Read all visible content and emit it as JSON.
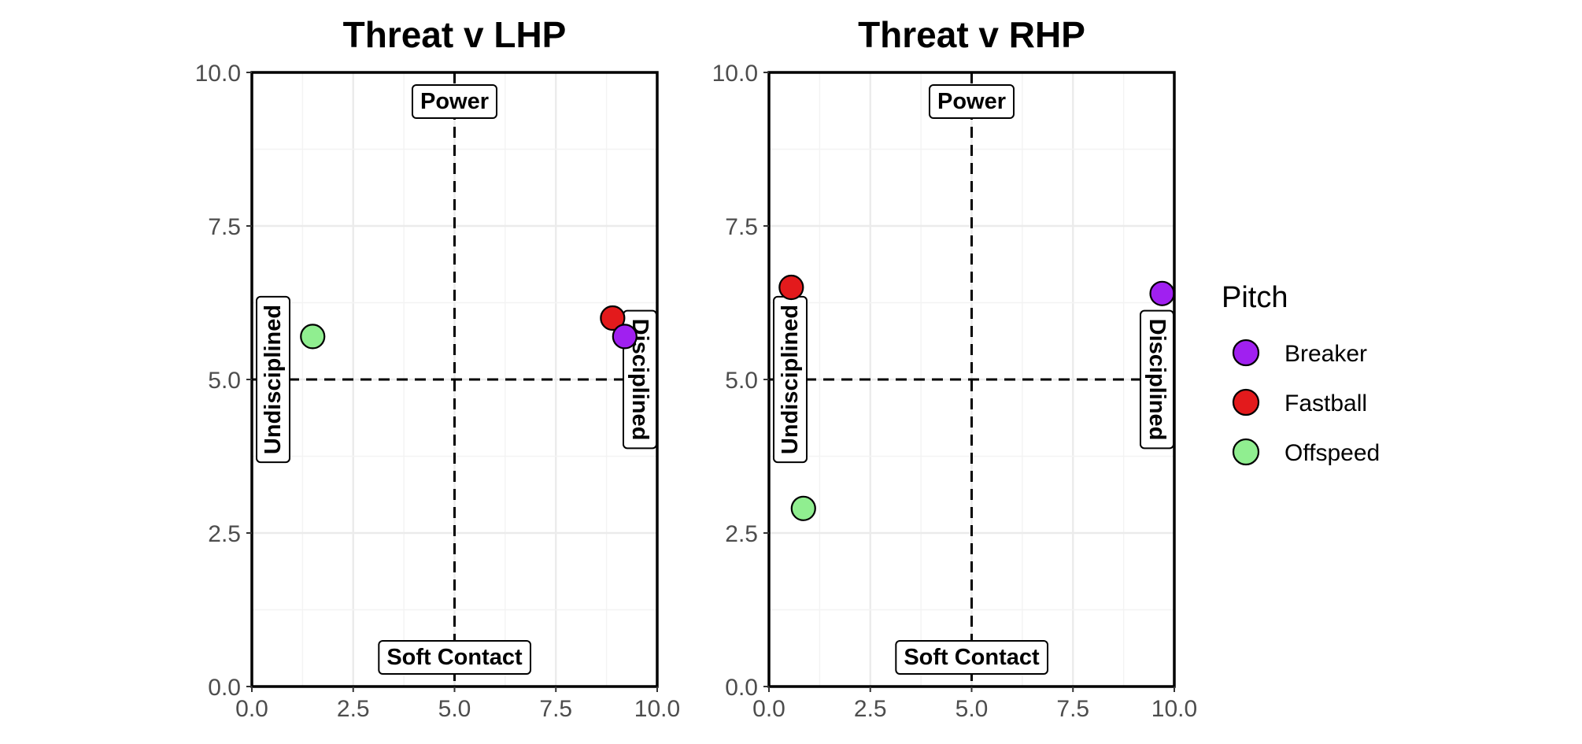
{
  "chart_data": [
    {
      "type": "scatter",
      "title": "Threat v LHP",
      "xlabel": "",
      "ylabel": "",
      "xlim": [
        0,
        10
      ],
      "ylim": [
        0,
        10
      ],
      "x_ticks": [
        "0.0",
        "2.5",
        "5.0",
        "7.5",
        "10.0"
      ],
      "y_ticks": [
        "0.0",
        "2.5",
        "5.0",
        "7.5",
        "10.0"
      ],
      "reference_lines": {
        "x": 5,
        "y": 5
      },
      "quadrant_labels": {
        "top": "Power",
        "bottom": "Soft Contact",
        "left": "Undisciplined",
        "right": "Disciplined"
      },
      "points": [
        {
          "pitch": "Offspeed",
          "x": 1.5,
          "y": 5.7
        },
        {
          "pitch": "Fastball",
          "x": 8.9,
          "y": 6.0
        },
        {
          "pitch": "Breaker",
          "x": 9.2,
          "y": 5.7
        }
      ]
    },
    {
      "type": "scatter",
      "title": "Threat v RHP",
      "xlabel": "",
      "ylabel": "",
      "xlim": [
        0,
        10
      ],
      "ylim": [
        0,
        10
      ],
      "x_ticks": [
        "0.0",
        "2.5",
        "5.0",
        "7.5",
        "10.0"
      ],
      "y_ticks": [
        "0.0",
        "2.5",
        "5.0",
        "7.5",
        "10.0"
      ],
      "reference_lines": {
        "x": 5,
        "y": 5
      },
      "quadrant_labels": {
        "top": "Power",
        "bottom": "Soft Contact",
        "left": "Undisciplined",
        "right": "Disciplined"
      },
      "points": [
        {
          "pitch": "Fastball",
          "x": 0.55,
          "y": 6.5
        },
        {
          "pitch": "Offspeed",
          "x": 0.85,
          "y": 2.9
        },
        {
          "pitch": "Breaker",
          "x": 9.7,
          "y": 6.4
        }
      ]
    }
  ],
  "legend": {
    "title": "Pitch",
    "items": [
      {
        "label": "Breaker",
        "color": "#a020f0"
      },
      {
        "label": "Fastball",
        "color": "#e31a1c"
      },
      {
        "label": "Offspeed",
        "color": "#90ee90"
      }
    ]
  }
}
